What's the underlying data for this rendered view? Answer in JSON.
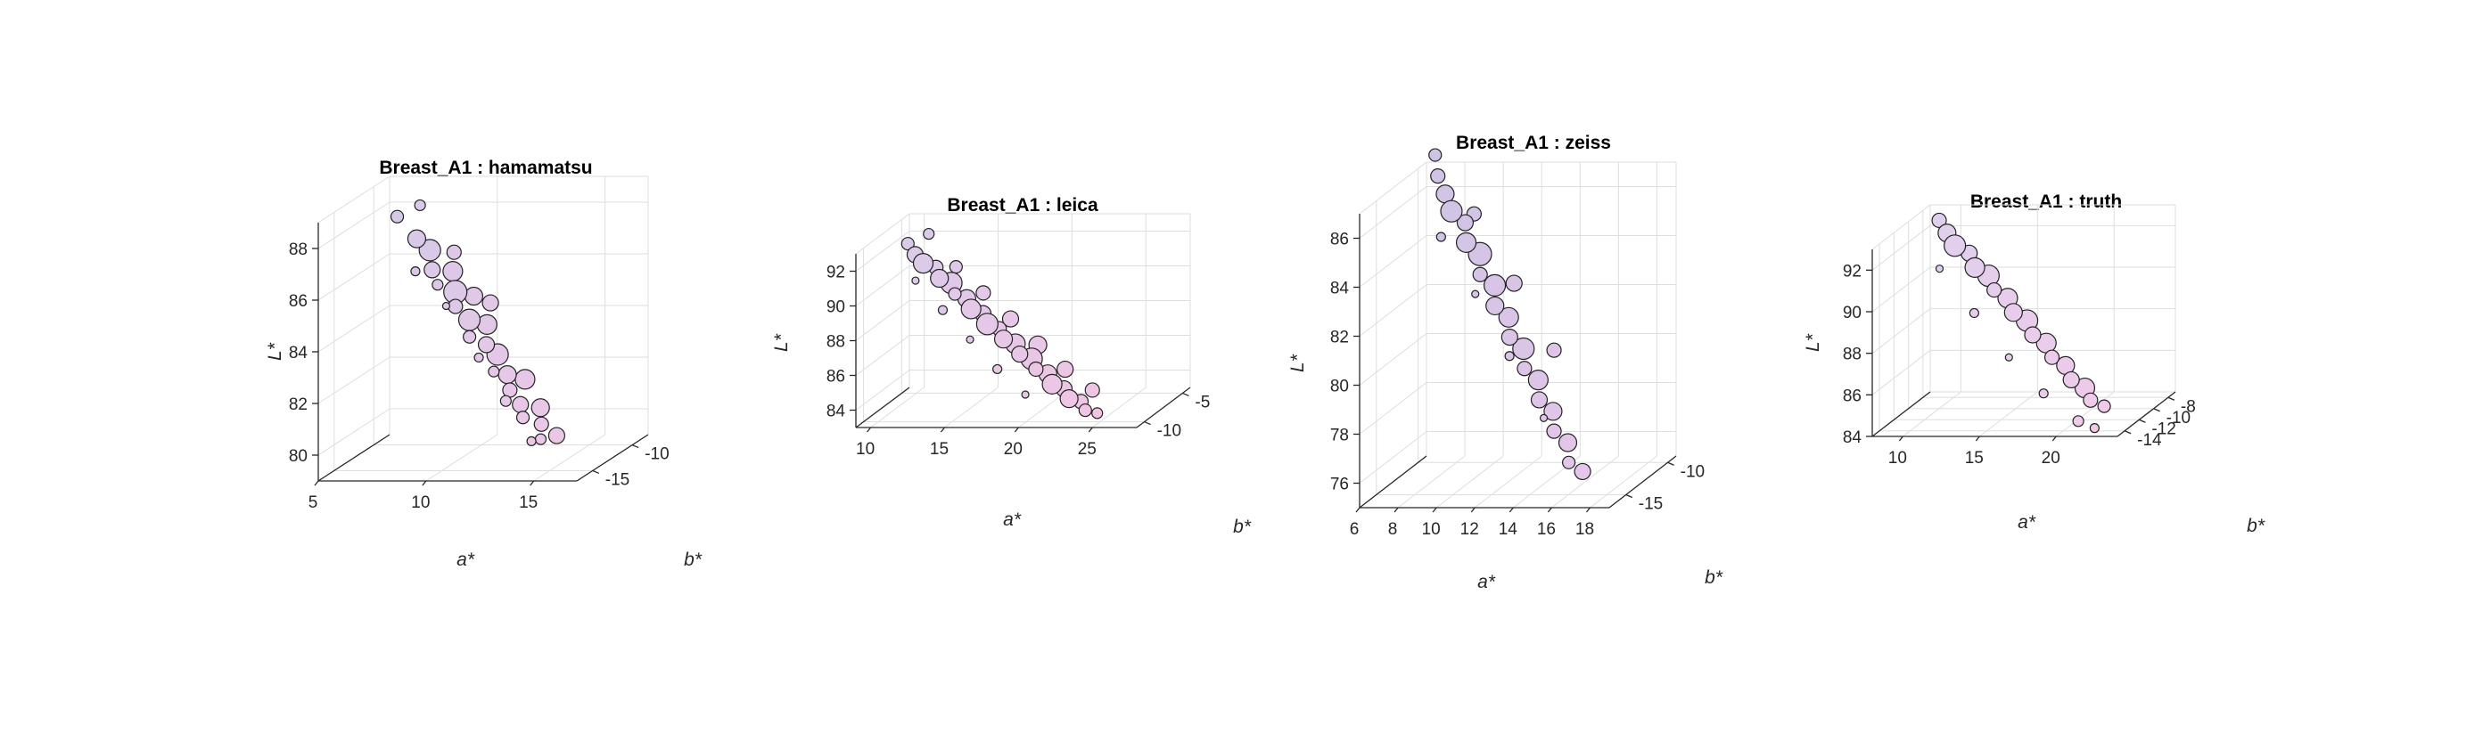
{
  "figure": {
    "background": "#ffffff"
  },
  "chart_data": [
    {
      "type": "scatter",
      "title": "Breast_A1 : hamamatsu",
      "xlabel": "a*",
      "ylabel": "b*",
      "zlabel": "L*",
      "xlim": [
        5,
        17
      ],
      "ylim": [
        -17,
        -8
      ],
      "zlim": [
        79,
        89
      ],
      "xticks": [
        "5",
        "10",
        "15"
      ],
      "yticks": [
        "-10",
        "-15"
      ],
      "zticks": [
        "80",
        "82",
        "84",
        "86",
        "88"
      ],
      "color_range": [
        "#d3c9e8",
        "#f2c6e6"
      ],
      "grid": true,
      "points": [
        [
          6.2,
          -10.3,
          87.9,
          7
        ],
        [
          7.4,
          -11.1,
          87.2,
          10
        ],
        [
          7.9,
          -10.8,
          86.7,
          12
        ],
        [
          8.3,
          -11.6,
          86.1,
          9
        ],
        [
          8.7,
          -12.0,
          85.6,
          6
        ],
        [
          9.0,
          -10.9,
          85.9,
          11
        ],
        [
          9.3,
          -11.4,
          85.2,
          13
        ],
        [
          9.6,
          -12.2,
          84.8,
          8
        ],
        [
          9.9,
          -10.7,
          84.9,
          10
        ],
        [
          10.1,
          -11.8,
          84.2,
          12
        ],
        [
          10.4,
          -12.6,
          83.7,
          7
        ],
        [
          10.7,
          -11.2,
          83.9,
          11
        ],
        [
          11.0,
          -12.1,
          83.3,
          9
        ],
        [
          11.3,
          -11.5,
          82.8,
          12
        ],
        [
          11.6,
          -12.8,
          82.4,
          6
        ],
        [
          11.9,
          -11.9,
          82.1,
          10
        ],
        [
          12.2,
          -12.4,
          81.6,
          8
        ],
        [
          12.5,
          -11.3,
          81.8,
          11
        ],
        [
          12.8,
          -12.7,
          81.1,
          9
        ],
        [
          13.1,
          -13.2,
          80.7,
          7
        ],
        [
          13.4,
          -11.8,
          80.8,
          10
        ],
        [
          13.7,
          -12.5,
          80.3,
          8
        ],
        [
          14.0,
          -13.4,
          79.9,
          6
        ],
        [
          14.3,
          -12.2,
          79.8,
          9
        ],
        [
          8.0,
          -12.9,
          86.3,
          5
        ],
        [
          9.5,
          -13.1,
          85.0,
          4
        ],
        [
          11.2,
          -13.6,
          83.1,
          5
        ],
        [
          12.6,
          -14.0,
          81.5,
          6
        ],
        [
          13.9,
          -14.3,
          80.0,
          5
        ],
        [
          7.0,
          -9.6,
          88.2,
          6
        ],
        [
          8.8,
          -10.2,
          86.5,
          8
        ],
        [
          10.6,
          -10.5,
          84.6,
          9
        ]
      ]
    },
    {
      "type": "scatter",
      "title": "Breast_A1 : leica",
      "xlabel": "a*",
      "ylabel": "b*",
      "zlabel": "L*",
      "xlim": [
        9,
        28
      ],
      "ylim": [
        -11,
        -4
      ],
      "zlim": [
        83,
        93
      ],
      "xticks": [
        "10",
        "15",
        "20",
        "25"
      ],
      "yticks": [
        "-5",
        "-10"
      ],
      "zticks": [
        "84",
        "86",
        "88",
        "90",
        "92"
      ],
      "color_range": [
        "#d8cbea",
        "#f7c3e2"
      ],
      "grid": true,
      "points": [
        [
          10.5,
          -7.1,
          92.3,
          7
        ],
        [
          11.2,
          -7.5,
          91.8,
          9
        ],
        [
          11.9,
          -7.8,
          91.4,
          11
        ],
        [
          12.5,
          -7.3,
          91.0,
          8
        ],
        [
          13.1,
          -8.0,
          90.6,
          10
        ],
        [
          13.7,
          -7.6,
          90.2,
          12
        ],
        [
          14.3,
          -8.3,
          89.8,
          7
        ],
        [
          14.9,
          -7.9,
          89.4,
          10
        ],
        [
          15.5,
          -8.5,
          89.0,
          11
        ],
        [
          16.1,
          -8.1,
          88.6,
          9
        ],
        [
          16.7,
          -8.7,
          88.2,
          12
        ],
        [
          17.3,
          -8.3,
          87.8,
          8
        ],
        [
          17.9,
          -8.9,
          87.4,
          10
        ],
        [
          18.5,
          -8.5,
          87.0,
          11
        ],
        [
          19.1,
          -9.1,
          86.6,
          9
        ],
        [
          19.7,
          -8.7,
          86.2,
          12
        ],
        [
          20.3,
          -9.3,
          85.8,
          8
        ],
        [
          20.9,
          -8.9,
          85.4,
          10
        ],
        [
          21.5,
          -9.5,
          85.0,
          11
        ],
        [
          22.1,
          -9.1,
          84.6,
          9
        ],
        [
          22.7,
          -9.6,
          84.2,
          10
        ],
        [
          23.3,
          -9.2,
          83.9,
          8
        ],
        [
          23.9,
          -9.8,
          83.6,
          7
        ],
        [
          24.5,
          -9.4,
          83.3,
          6
        ],
        [
          12.0,
          -9.0,
          90.8,
          4
        ],
        [
          14.0,
          -9.3,
          89.2,
          5
        ],
        [
          16.0,
          -9.6,
          87.6,
          4
        ],
        [
          18.0,
          -9.9,
          86.0,
          5
        ],
        [
          20.0,
          -10.1,
          84.6,
          4
        ],
        [
          11.5,
          -6.3,
          92.6,
          6
        ],
        [
          13.5,
          -6.6,
          90.8,
          7
        ],
        [
          15.5,
          -6.9,
          89.4,
          8
        ],
        [
          17.5,
          -7.2,
          88.0,
          9
        ],
        [
          19.5,
          -7.5,
          86.6,
          10
        ],
        [
          21.5,
          -7.8,
          85.3,
          9
        ],
        [
          23.5,
          -8.1,
          84.2,
          8
        ]
      ]
    },
    {
      "type": "scatter",
      "title": "Breast_A1 : zeiss",
      "xlabel": "a*",
      "ylabel": "b*",
      "zlabel": "L*",
      "xlim": [
        6,
        19
      ],
      "ylim": [
        -17,
        -9
      ],
      "zlim": [
        75,
        87
      ],
      "xticks": [
        "6",
        "8",
        "10",
        "12",
        "14",
        "16",
        "18"
      ],
      "yticks": [
        "-10",
        "-15"
      ],
      "zticks": [
        "76",
        "78",
        "80",
        "82",
        "84",
        "86"
      ],
      "color_range": [
        "#cdc3e4",
        "#e9c7ea"
      ],
      "grid": true,
      "points": [
        [
          7.2,
          -10.4,
          86.8,
          8
        ],
        [
          7.8,
          -10.9,
          86.2,
          10
        ],
        [
          8.3,
          -11.3,
          85.6,
          12
        ],
        [
          8.8,
          -10.8,
          85.0,
          9
        ],
        [
          9.2,
          -11.6,
          84.4,
          11
        ],
        [
          9.7,
          -11.1,
          83.8,
          13
        ],
        [
          10.1,
          -12.0,
          83.2,
          8
        ],
        [
          10.6,
          -11.4,
          82.6,
          12
        ],
        [
          11.0,
          -12.3,
          82.0,
          10
        ],
        [
          11.5,
          -11.8,
          81.4,
          11
        ],
        [
          11.9,
          -12.6,
          80.8,
          9
        ],
        [
          12.4,
          -12.1,
          80.2,
          12
        ],
        [
          12.8,
          -12.9,
          79.6,
          8
        ],
        [
          13.3,
          -12.4,
          79.0,
          11
        ],
        [
          13.7,
          -13.2,
          78.4,
          9
        ],
        [
          14.2,
          -12.7,
          77.8,
          10
        ],
        [
          14.6,
          -13.5,
          77.2,
          8
        ],
        [
          15.1,
          -13.0,
          76.6,
          10
        ],
        [
          15.5,
          -13.8,
          76.0,
          7
        ],
        [
          16.0,
          -13.3,
          75.5,
          9
        ],
        [
          8.5,
          -13.0,
          85.0,
          5
        ],
        [
          10.5,
          -13.5,
          82.8,
          4
        ],
        [
          12.5,
          -14.0,
          80.4,
          5
        ],
        [
          14.5,
          -14.5,
          78.0,
          4
        ],
        [
          6.8,
          -9.8,
          87.5,
          7
        ],
        [
          9.0,
          -10.2,
          85.2,
          8
        ],
        [
          11.3,
          -10.7,
          82.5,
          9
        ],
        [
          13.6,
          -11.2,
          79.9,
          8
        ]
      ]
    },
    {
      "type": "scatter",
      "title": "Breast_A1 : truth",
      "xlabel": "a*",
      "ylabel": "b*",
      "zlabel": "L*",
      "xlim": [
        8,
        24
      ],
      "ylim": [
        -15,
        -7
      ],
      "zlim": [
        84,
        93
      ],
      "xticks": [
        "10",
        "15",
        "20"
      ],
      "yticks": [
        "-8",
        "-10",
        "-12",
        "-14"
      ],
      "zticks": [
        "84",
        "86",
        "88",
        "90",
        "92"
      ],
      "color_range": [
        "#ddd0ee",
        "#f4c8e8"
      ],
      "grid": true,
      "points": [
        [
          9.2,
          -8.3,
          92.6,
          8
        ],
        [
          9.9,
          -8.7,
          92.1,
          10
        ],
        [
          10.6,
          -9.1,
          91.6,
          12
        ],
        [
          11.3,
          -8.6,
          91.1,
          9
        ],
        [
          12.0,
          -9.3,
          90.6,
          11
        ],
        [
          12.7,
          -8.9,
          90.1,
          12
        ],
        [
          13.4,
          -9.6,
          89.6,
          8
        ],
        [
          14.1,
          -9.2,
          89.1,
          11
        ],
        [
          14.8,
          -9.9,
          88.6,
          10
        ],
        [
          15.5,
          -9.5,
          88.1,
          12
        ],
        [
          16.2,
          -10.2,
          87.6,
          9
        ],
        [
          16.9,
          -9.8,
          87.1,
          11
        ],
        [
          17.6,
          -10.5,
          86.6,
          8
        ],
        [
          18.3,
          -10.1,
          86.1,
          10
        ],
        [
          19.0,
          -10.8,
          85.6,
          9
        ],
        [
          19.7,
          -10.4,
          85.1,
          11
        ],
        [
          20.4,
          -11.1,
          84.7,
          8
        ],
        [
          21.1,
          -10.7,
          84.3,
          7
        ],
        [
          10.5,
          -11.0,
          91.0,
          4
        ],
        [
          13.0,
          -11.5,
          89.0,
          5
        ],
        [
          15.5,
          -12.0,
          87.0,
          4
        ],
        [
          18.0,
          -12.5,
          85.4,
          5
        ],
        [
          20.5,
          -13.0,
          84.2,
          6
        ],
        [
          21.8,
          -13.5,
          84.0,
          5
        ]
      ]
    }
  ]
}
